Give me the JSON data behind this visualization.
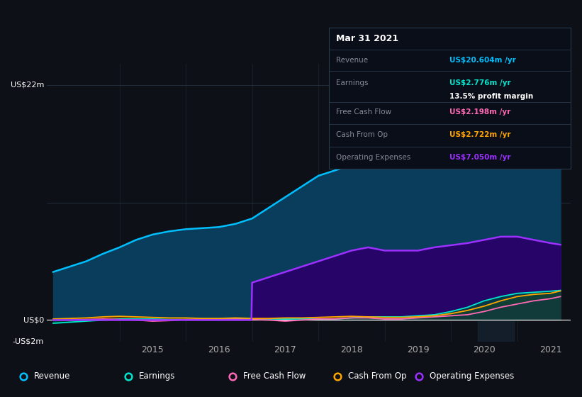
{
  "bg_color": "#0d1117",
  "plot_bg_color": "#0d1117",
  "ylim": [
    -2,
    24
  ],
  "grid_color": "#2a3a4a",
  "revenue_color": "#00bfff",
  "earnings_color": "#00e5cc",
  "fcf_color": "#ff69b4",
  "cashop_color": "#ffa500",
  "opex_color": "#9b30ff",
  "revenue_data_x": [
    2013.5,
    2013.75,
    2014.0,
    2014.25,
    2014.5,
    2014.75,
    2015.0,
    2015.25,
    2015.5,
    2015.75,
    2016.0,
    2016.25,
    2016.5,
    2016.75,
    2017.0,
    2017.25,
    2017.5,
    2017.75,
    2018.0,
    2018.25,
    2018.5,
    2018.75,
    2019.0,
    2019.25,
    2019.5,
    2019.75,
    2020.0,
    2020.25,
    2020.5,
    2020.75,
    2021.0,
    2021.15
  ],
  "revenue_data_y": [
    4.5,
    5.0,
    5.5,
    6.2,
    6.8,
    7.5,
    8.0,
    8.3,
    8.5,
    8.6,
    8.7,
    9.0,
    9.5,
    10.5,
    11.5,
    12.5,
    13.5,
    14.0,
    14.5,
    15.0,
    15.5,
    15.8,
    16.0,
    16.5,
    17.2,
    18.5,
    20.5,
    21.5,
    21.0,
    20.5,
    20.0,
    20.604
  ],
  "earnings_data_x": [
    2013.5,
    2013.75,
    2014.0,
    2014.25,
    2014.5,
    2014.75,
    2015.0,
    2015.25,
    2015.5,
    2015.75,
    2016.0,
    2016.25,
    2016.5,
    2016.75,
    2017.0,
    2017.25,
    2017.5,
    2017.75,
    2018.0,
    2018.25,
    2018.5,
    2018.75,
    2019.0,
    2019.25,
    2019.5,
    2019.75,
    2020.0,
    2020.25,
    2020.5,
    2020.75,
    2021.0,
    2021.15
  ],
  "earnings_data_y": [
    -0.3,
    -0.2,
    -0.1,
    0.0,
    0.1,
    0.1,
    0.1,
    0.05,
    0.05,
    0.05,
    0.05,
    0.1,
    0.1,
    0.1,
    0.1,
    0.1,
    0.1,
    0.1,
    0.2,
    0.3,
    0.3,
    0.3,
    0.4,
    0.5,
    0.8,
    1.2,
    1.8,
    2.2,
    2.5,
    2.6,
    2.7,
    2.776
  ],
  "fcf_data_x": [
    2013.5,
    2013.75,
    2014.0,
    2014.25,
    2014.5,
    2014.75,
    2015.0,
    2015.25,
    2015.5,
    2015.75,
    2016.0,
    2016.25,
    2016.5,
    2016.75,
    2017.0,
    2017.25,
    2017.5,
    2017.75,
    2018.0,
    2018.25,
    2018.5,
    2018.75,
    2019.0,
    2019.25,
    2019.5,
    2019.75,
    2020.0,
    2020.25,
    2020.5,
    2020.75,
    2021.0,
    2021.15
  ],
  "fcf_data_y": [
    0.0,
    0.0,
    0.05,
    0.1,
    0.05,
    0.0,
    -0.1,
    -0.05,
    0.05,
    0.05,
    0.05,
    0.1,
    0.05,
    0.0,
    -0.1,
    0.0,
    0.1,
    0.1,
    0.2,
    0.2,
    0.1,
    0.1,
    0.2,
    0.3,
    0.4,
    0.5,
    0.8,
    1.2,
    1.5,
    1.8,
    2.0,
    2.198
  ],
  "cashop_data_x": [
    2013.5,
    2013.75,
    2014.0,
    2014.25,
    2014.5,
    2014.75,
    2015.0,
    2015.25,
    2015.5,
    2015.75,
    2016.0,
    2016.25,
    2016.5,
    2016.75,
    2017.0,
    2017.25,
    2017.5,
    2017.75,
    2018.0,
    2018.25,
    2018.5,
    2018.75,
    2019.0,
    2019.25,
    2019.5,
    2019.75,
    2020.0,
    2020.25,
    2020.5,
    2020.75,
    2021.0,
    2021.15
  ],
  "cashop_data_y": [
    0.1,
    0.15,
    0.2,
    0.3,
    0.35,
    0.3,
    0.25,
    0.2,
    0.2,
    0.15,
    0.15,
    0.2,
    0.15,
    0.15,
    0.2,
    0.2,
    0.25,
    0.3,
    0.35,
    0.3,
    0.25,
    0.25,
    0.3,
    0.4,
    0.6,
    0.9,
    1.3,
    1.8,
    2.2,
    2.4,
    2.5,
    2.722
  ],
  "opex_data_x": [
    2013.5,
    2016.49,
    2016.5,
    2016.75,
    2017.0,
    2017.25,
    2017.5,
    2017.75,
    2018.0,
    2018.25,
    2018.5,
    2018.75,
    2019.0,
    2019.25,
    2019.5,
    2019.75,
    2020.0,
    2020.25,
    2020.5,
    2020.75,
    2021.0,
    2021.15
  ],
  "opex_data_y": [
    0.0,
    0.0,
    3.5,
    4.0,
    4.5,
    5.0,
    5.5,
    6.0,
    6.5,
    6.8,
    6.5,
    6.5,
    6.5,
    6.8,
    7.0,
    7.2,
    7.5,
    7.8,
    7.8,
    7.5,
    7.2,
    7.05
  ],
  "info_rows": [
    {
      "label": "Revenue",
      "value": "US$20.604m /yr",
      "value_color": "#00bfff"
    },
    {
      "label": "Earnings",
      "value": "US$2.776m /yr",
      "value_color": "#00e5cc"
    },
    {
      "label": "Free Cash Flow",
      "value": "US$2.198m /yr",
      "value_color": "#ff69b4"
    },
    {
      "label": "Cash From Op",
      "value": "US$2.722m /yr",
      "value_color": "#ffa500"
    },
    {
      "label": "Operating Expenses",
      "value": "US$7.050m /yr",
      "value_color": "#9b30ff"
    }
  ],
  "legend_items": [
    {
      "label": "Revenue",
      "color": "#00bfff"
    },
    {
      "label": "Earnings",
      "color": "#00e5cc"
    },
    {
      "label": "Free Cash Flow",
      "color": "#ff69b4"
    },
    {
      "label": "Cash From Op",
      "color": "#ffa500"
    },
    {
      "label": "Operating Expenses",
      "color": "#9b30ff"
    }
  ]
}
